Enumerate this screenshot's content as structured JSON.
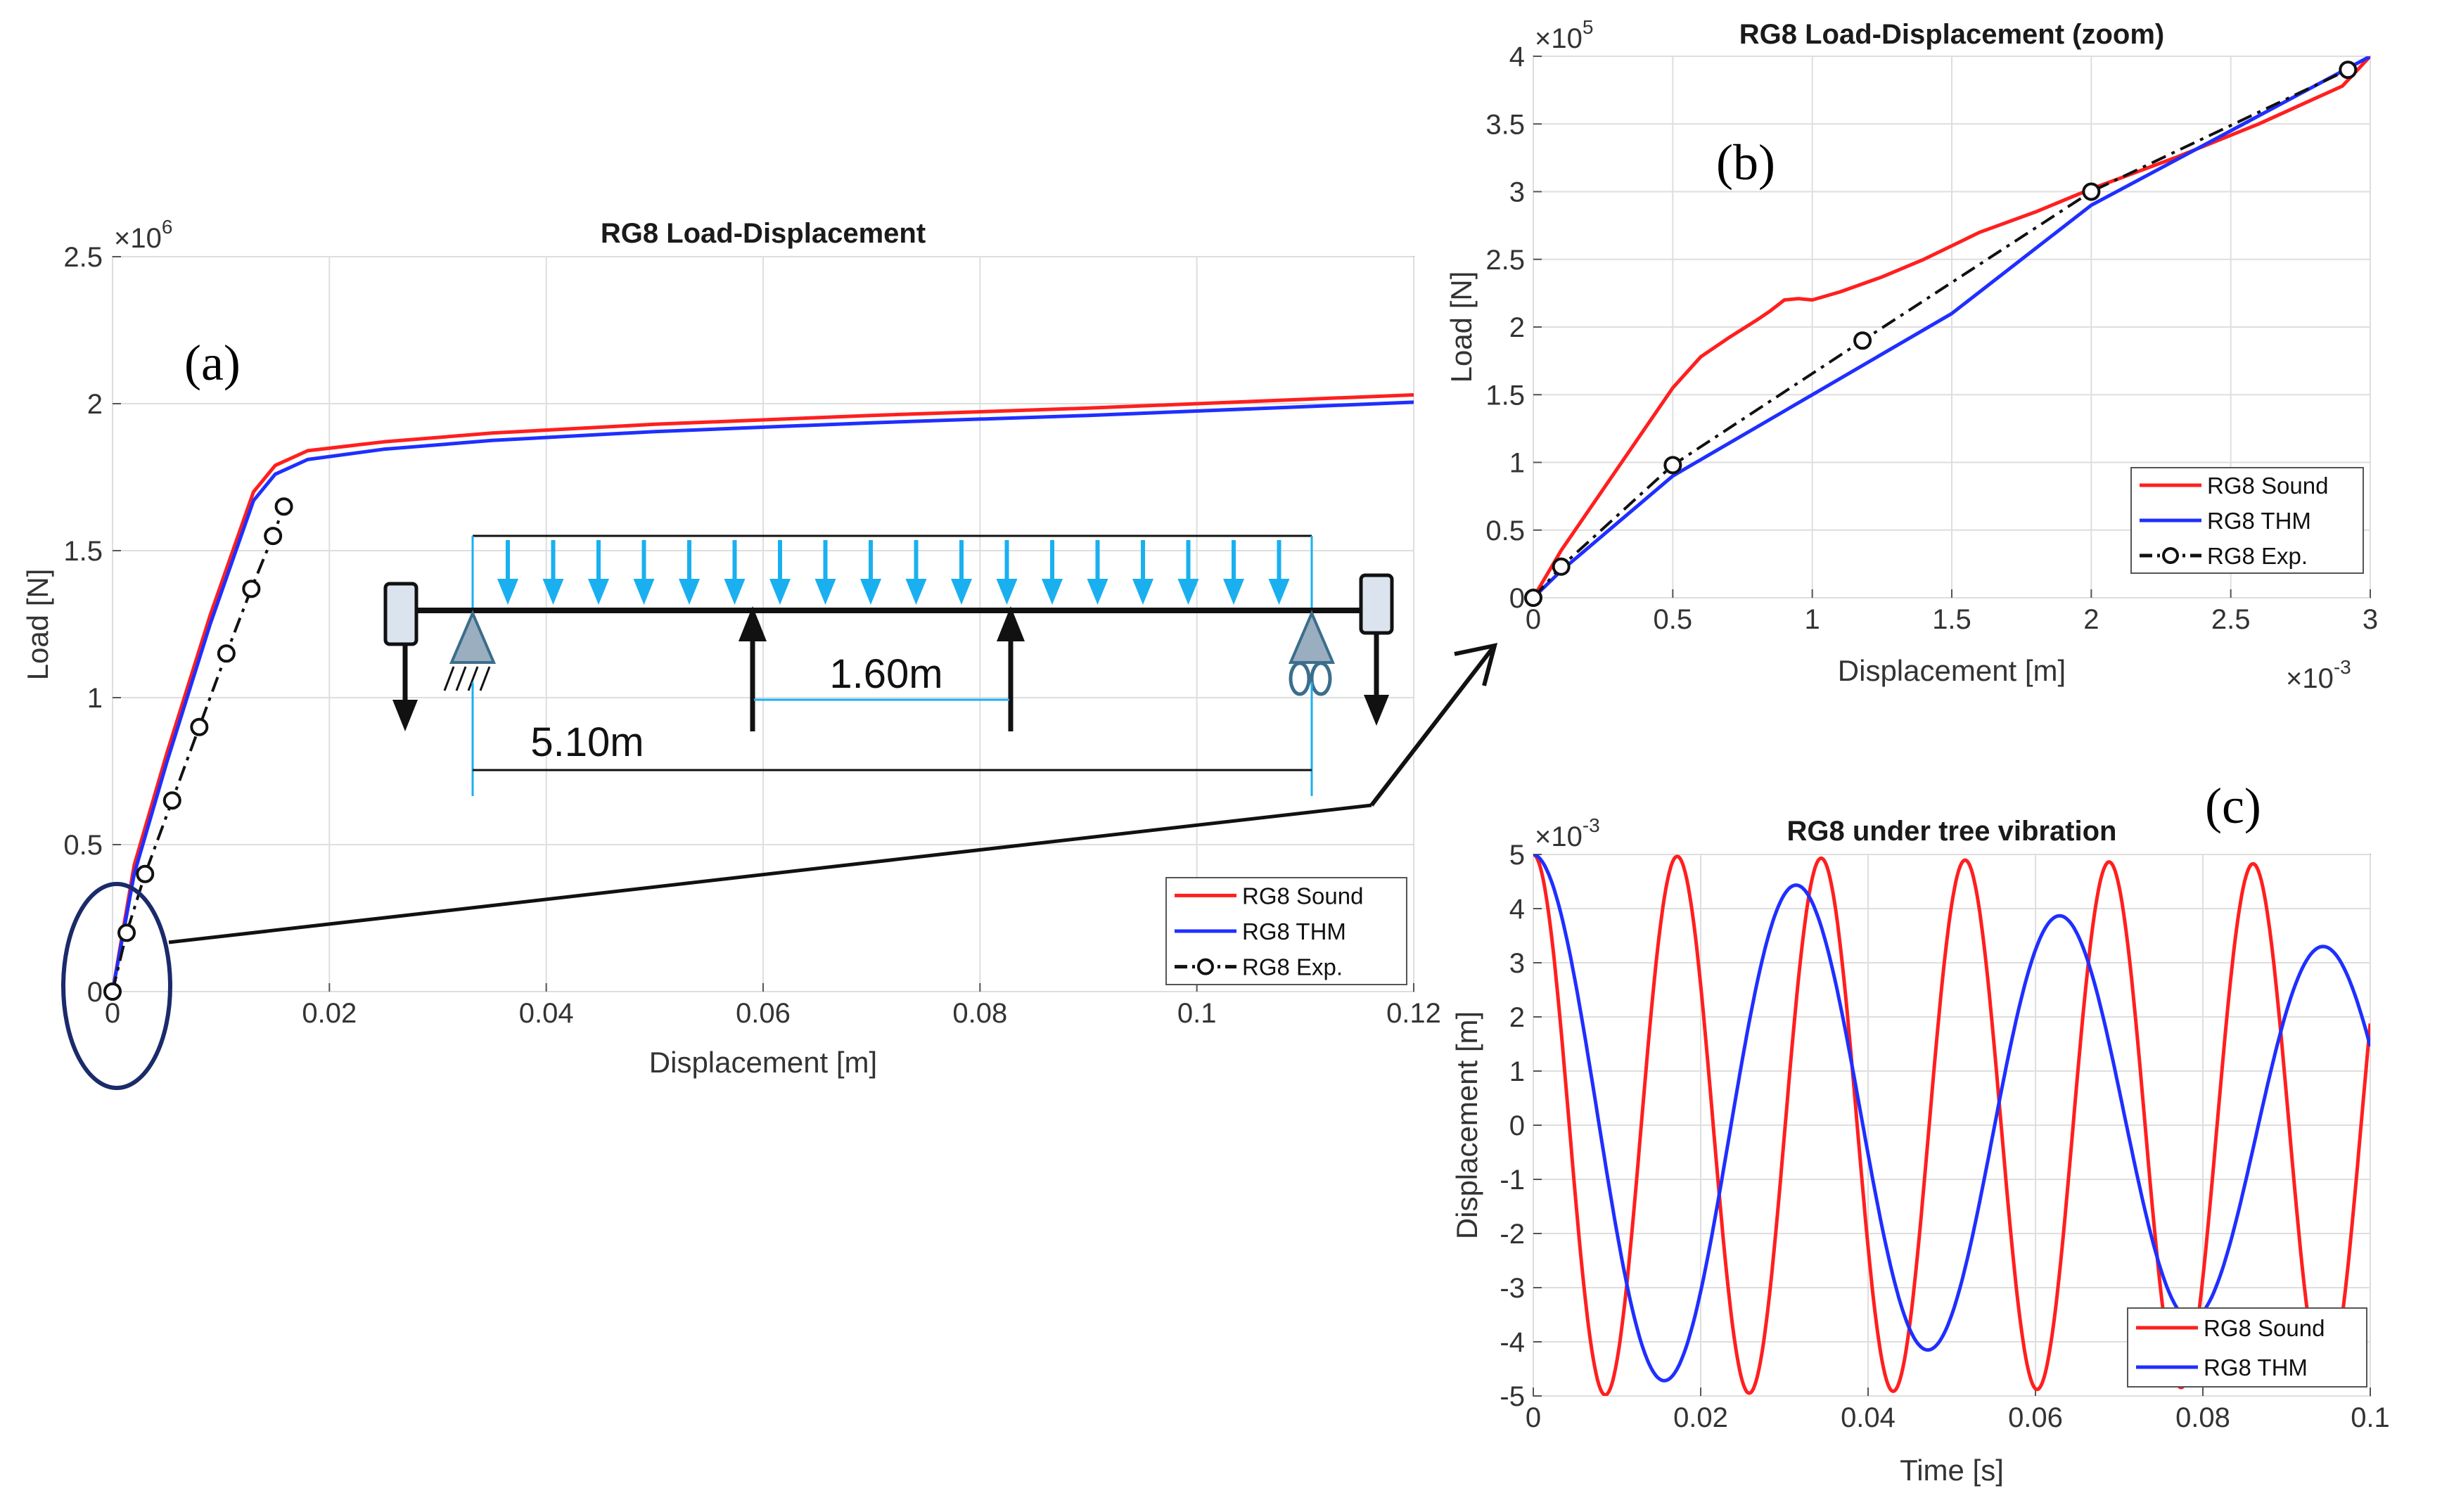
{
  "colors": {
    "sound": "#ff1f1f",
    "thm": "#1f2fff",
    "exp": "#111111",
    "grid": "#dedede",
    "load_arrow": "#1ab0f0",
    "support": "#9aaec0",
    "ellipse": "#1a2a6a"
  },
  "chart_data": [
    {
      "id": "a",
      "panel_label": "(a)",
      "type": "line",
      "title": "RG8 Load-Displacement",
      "xlabel": "Displacement [m]",
      "ylabel": "Load [N]",
      "xlim": [
        0,
        0.12
      ],
      "ylim": [
        0,
        2500000
      ],
      "xticks": [
        0,
        0.02,
        0.04,
        0.06,
        0.08,
        0.1,
        0.12
      ],
      "xtick_labels": [
        "0",
        "0.02",
        "0.04",
        "0.06",
        "0.08",
        "0.1",
        "0.12"
      ],
      "yticks": [
        0,
        500000,
        1000000,
        1500000,
        2000000,
        2500000
      ],
      "ytick_labels": [
        "0",
        "0.5",
        "1",
        "1.5",
        "2",
        "2.5"
      ],
      "y_exponent": "×10",
      "y_exponent_power": "6",
      "grid": true,
      "legend_position": "bottom-right",
      "series": [
        {
          "name": "RG8 Sound",
          "style": "solid",
          "x": [
            0,
            0.002,
            0.005,
            0.009,
            0.013,
            0.015,
            0.018,
            0.025,
            0.035,
            0.05,
            0.07,
            0.09,
            0.11,
            0.12
          ],
          "y": [
            0,
            430000,
            810000,
            1280000,
            1700000,
            1790000,
            1840000,
            1870000,
            1900000,
            1930000,
            1960000,
            1985000,
            2015000,
            2030000
          ]
        },
        {
          "name": "RG8 THM",
          "style": "solid",
          "x": [
            0,
            0.002,
            0.005,
            0.009,
            0.013,
            0.015,
            0.018,
            0.025,
            0.035,
            0.05,
            0.07,
            0.09,
            0.11,
            0.12
          ],
          "y": [
            0,
            400000,
            780000,
            1250000,
            1670000,
            1760000,
            1810000,
            1845000,
            1875000,
            1905000,
            1935000,
            1960000,
            1990000,
            2005000
          ]
        },
        {
          "name": "RG8 Exp.",
          "style": "dashdot-circle",
          "x": [
            0,
            0.0013,
            0.003,
            0.0055,
            0.008,
            0.0105,
            0.0128,
            0.0148,
            0.0158
          ],
          "y": [
            0,
            200000,
            400000,
            650000,
            900000,
            1150000,
            1370000,
            1550000,
            1650000
          ]
        }
      ]
    },
    {
      "id": "b",
      "panel_label": "(b)",
      "type": "line",
      "title": "RG8 Load-Displacement (zoom)",
      "xlabel": "Displacement [m]",
      "ylabel": "Load [N]",
      "xlim": [
        0,
        0.003
      ],
      "ylim": [
        0,
        400000
      ],
      "xticks": [
        0,
        0.0005,
        0.001,
        0.0015,
        0.002,
        0.0025,
        0.003
      ],
      "xtick_labels": [
        "0",
        "0.5",
        "1",
        "1.5",
        "2",
        "2.5",
        "3"
      ],
      "yticks": [
        0,
        50000,
        100000,
        150000,
        200000,
        250000,
        300000,
        350000,
        400000
      ],
      "ytick_labels": [
        "0",
        "0.5",
        "1",
        "1.5",
        "2",
        "2.5",
        "3",
        "3.5",
        "4"
      ],
      "y_exponent": "×10",
      "y_exponent_power": "5",
      "x_exponent": "×10",
      "x_exponent_power": "-3",
      "grid": true,
      "legend_position": "bottom-right",
      "series": [
        {
          "name": "RG8 Sound",
          "style": "solid",
          "x": [
            0,
            0.0001,
            0.0003,
            0.0005,
            0.0006,
            0.0007,
            0.0008,
            0.00085,
            0.0009,
            0.00095,
            0.001,
            0.0011,
            0.00125,
            0.0014,
            0.0016,
            0.0018,
            0.002,
            0.0023,
            0.0026,
            0.0029,
            0.003
          ],
          "y": [
            0,
            35000,
            95000,
            155000,
            178000,
            192000,
            205000,
            212000,
            220000,
            221000,
            220000,
            226000,
            237000,
            250000,
            270000,
            285000,
            302000,
            325000,
            350000,
            378000,
            400000
          ]
        },
        {
          "name": "RG8 THM",
          "style": "solid",
          "x": [
            0,
            0.0001,
            0.0005,
            0.001,
            0.0015,
            0.002,
            0.0025,
            0.003
          ],
          "y": [
            0,
            20000,
            90000,
            150000,
            210000,
            290000,
            345000,
            400000
          ]
        },
        {
          "name": "RG8 Exp.",
          "style": "dashdot-circle",
          "x": [
            0,
            0.0001,
            0.0005,
            0.00118,
            0.002,
            0.00292
          ],
          "y": [
            0,
            23000,
            98000,
            190000,
            300000,
            390000
          ]
        }
      ]
    },
    {
      "id": "c",
      "panel_label": "(c)",
      "type": "line",
      "title": "RG8 under tree vibration",
      "xlabel": "Time [s]",
      "ylabel": "Displacement [m]",
      "xlim": [
        0,
        0.1
      ],
      "ylim": [
        -0.005,
        0.005
      ],
      "xticks": [
        0,
        0.02,
        0.04,
        0.06,
        0.08,
        0.1
      ],
      "xtick_labels": [
        "0",
        "0.02",
        "0.04",
        "0.06",
        "0.08",
        "0.1"
      ],
      "yticks": [
        -0.005,
        -0.004,
        -0.003,
        -0.002,
        -0.001,
        0,
        0.001,
        0.002,
        0.003,
        0.004,
        0.005
      ],
      "ytick_labels": [
        "-5",
        "-4",
        "-3",
        "-2",
        "-1",
        "0",
        "1",
        "2",
        "3",
        "4",
        "5"
      ],
      "y_exponent": "×10",
      "y_exponent_power": "-3",
      "grid": true,
      "legend_position": "bottom-right",
      "series": [
        {
          "name": "RG8 Sound",
          "style": "solid",
          "amplitude_start": 0.005,
          "amplitude_end": 0.0048,
          "period": 0.0172
        },
        {
          "name": "RG8 THM",
          "style": "solid",
          "amplitude_start": 0.005,
          "amplitude_end": 0.0032,
          "period": 0.0315
        }
      ]
    }
  ],
  "inset": {
    "span_label": "5.10m",
    "load_spacing_label": "1.60m"
  }
}
